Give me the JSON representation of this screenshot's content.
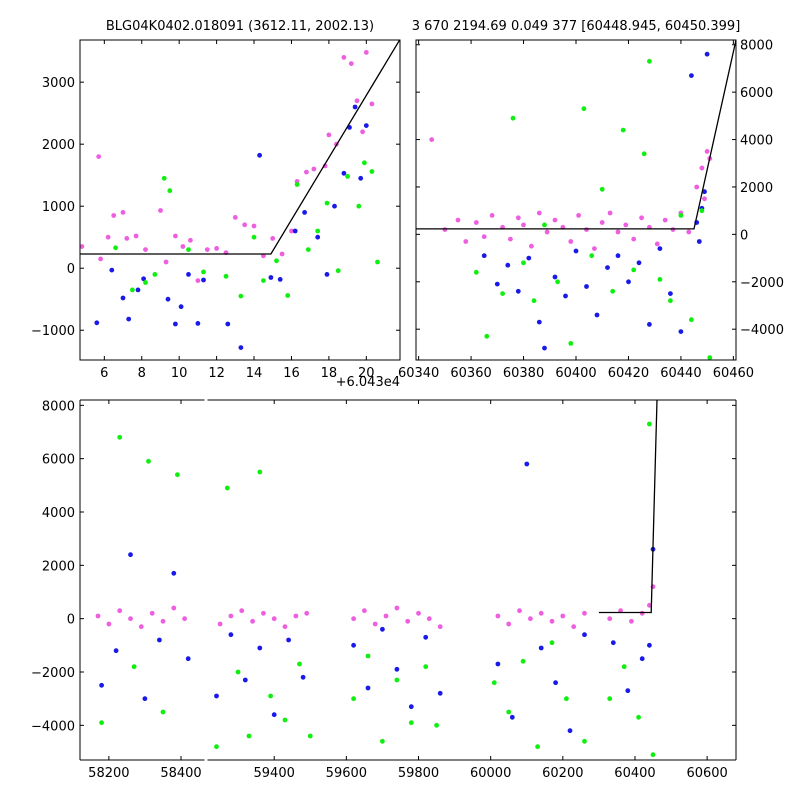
{
  "chart_data": [
    {
      "type": "scatter",
      "title": "BLG04K0402.018091 (3612.11, 2002.13)",
      "xlabel": "",
      "ylabel": "",
      "x_offset_label": "+6.043e4",
      "xlim": [
        4.7,
        21.8
      ],
      "ylim": [
        -1480,
        3680
      ],
      "xticks": [
        6,
        8,
        10,
        12,
        14,
        16,
        18,
        20
      ],
      "xtick_labels": [
        "6",
        "8",
        "10",
        "12",
        "14",
        "16",
        "18",
        "20"
      ],
      "yticks": [
        -1000,
        0,
        1000,
        2000,
        3000
      ],
      "ytick_labels": [
        "−1000",
        "0",
        "1000",
        "2000",
        "3000"
      ],
      "series": [
        {
          "color": "#ee5fe0",
          "x": [
            4.8,
            5.7,
            5.8,
            6.2,
            6.5,
            7.0,
            7.2,
            7.7,
            8.2,
            9.0,
            9.3,
            9.8,
            10.2,
            10.6,
            11.0,
            11.5,
            12.0,
            12.5,
            13.0,
            13.5,
            14.0,
            14.5,
            15.0,
            15.5,
            16.0,
            16.3,
            16.8,
            17.2,
            17.8,
            18.0,
            18.4,
            18.8,
            19.2,
            19.5,
            19.8,
            20.0,
            20.3
          ],
          "y": [
            350,
            1800,
            150,
            500,
            850,
            900,
            480,
            520,
            300,
            930,
            100,
            520,
            350,
            450,
            -200,
            300,
            320,
            250,
            820,
            700,
            680,
            200,
            480,
            230,
            600,
            1400,
            1550,
            1600,
            1650,
            2150,
            2000,
            3400,
            3300,
            2700,
            2200,
            3480,
            2650
          ]
        },
        {
          "color": "#1a1ae8",
          "x": [
            5.6,
            6.4,
            7.0,
            7.3,
            7.8,
            8.1,
            9.4,
            9.8,
            10.1,
            10.5,
            11.0,
            11.3,
            12.6,
            13.3,
            14.3,
            14.9,
            15.4,
            16.2,
            16.7,
            17.4,
            17.9,
            18.3,
            18.8,
            19.1,
            19.4,
            19.7,
            20.0
          ],
          "y": [
            -880,
            -30,
            -480,
            -820,
            -350,
            -170,
            -500,
            -900,
            -620,
            -100,
            -890,
            -190,
            -900,
            -1280,
            1820,
            -150,
            -180,
            600,
            900,
            500,
            -100,
            1000,
            1530,
            2270,
            2600,
            1450,
            2300
          ]
        },
        {
          "color": "#10f010",
          "x": [
            6.6,
            7.5,
            8.2,
            8.7,
            9.2,
            9.5,
            10.5,
            11.3,
            12.5,
            13.3,
            14.0,
            14.5,
            15.2,
            15.8,
            16.3,
            16.9,
            17.4,
            17.9,
            18.5,
            19.0,
            19.6,
            19.9,
            20.3,
            20.6
          ],
          "y": [
            330,
            -350,
            -230,
            -100,
            1450,
            1250,
            300,
            -60,
            -130,
            -450,
            500,
            -200,
            120,
            -440,
            1350,
            300,
            600,
            1050,
            -40,
            1480,
            1000,
            1700,
            1560,
            100
          ]
        }
      ],
      "model": {
        "color": "#000000",
        "x": [
          4.7,
          14.9,
          21.8
        ],
        "y": [
          230,
          230,
          3690
        ]
      }
    },
    {
      "type": "scatter",
      "title": "3 670 2194.69 0.049 377 [60448.945, 60450.399]",
      "xlabel": "",
      "ylabel": "",
      "xlim": [
        60339,
        60461
      ],
      "ylim": [
        -5300,
        8200
      ],
      "xticks": [
        60340,
        60360,
        60380,
        60400,
        60420,
        60440,
        60460
      ],
      "xtick_labels": [
        "60340",
        "60360",
        "60380",
        "60400",
        "60420",
        "60440",
        "60460"
      ],
      "yticks": [
        -4000,
        -2000,
        0,
        2000,
        4000,
        6000,
        8000
      ],
      "ytick_labels": [
        "−4000",
        "−2000",
        "0",
        "2000",
        "4000",
        "6000",
        "8000"
      ],
      "y_axis_side": "right",
      "series": [
        {
          "color": "#ee5fe0",
          "x": [
            60345,
            60350,
            60355,
            60358,
            60362,
            60365,
            60368,
            60372,
            60375,
            60378,
            60380,
            60383,
            60386,
            60389,
            60392,
            60395,
            60398,
            60401,
            60404,
            60407,
            60410,
            60413,
            60416,
            60419,
            60422,
            60425,
            60428,
            60431,
            60434,
            60437,
            60440,
            60443,
            60446,
            60448,
            60449,
            60450,
            60451
          ],
          "y": [
            4000,
            200,
            600,
            -300,
            500,
            -100,
            800,
            300,
            -200,
            700,
            400,
            -500,
            900,
            100,
            600,
            300,
            -300,
            800,
            200,
            -600,
            500,
            900,
            100,
            400,
            -200,
            700,
            300,
            -400,
            600,
            200,
            900,
            100,
            2000,
            2800,
            1500,
            3500,
            3200
          ]
        },
        {
          "color": "#1a1ae8",
          "x": [
            60365,
            60370,
            60374,
            60378,
            60382,
            60386,
            60388,
            60392,
            60396,
            60400,
            60404,
            60408,
            60412,
            60416,
            60420,
            60424,
            60428,
            60432,
            60436,
            60440,
            60444,
            60446,
            60447,
            60448,
            60449,
            60450
          ],
          "y": [
            -900,
            -2100,
            -1300,
            -2400,
            -1000,
            -3700,
            -4800,
            -1800,
            -2600,
            -700,
            -2200,
            -3400,
            -1400,
            -900,
            -2000,
            -1200,
            -3800,
            -600,
            -2500,
            -4100,
            6700,
            500,
            -300,
            1100,
            1800,
            7600
          ]
        },
        {
          "color": "#10f010",
          "x": [
            60362,
            60366,
            60372,
            60376,
            60380,
            60384,
            60388,
            60393,
            60398,
            60403,
            60406,
            60410,
            60414,
            60418,
            60422,
            60426,
            60428,
            60432,
            60436,
            60440,
            60444,
            60448,
            60451
          ],
          "y": [
            -1600,
            -4300,
            -2500,
            4900,
            -1200,
            -2800,
            400,
            -2000,
            -4600,
            5300,
            -900,
            1900,
            -2400,
            4400,
            -1500,
            3400,
            7300,
            -1900,
            -2800,
            800,
            -3600,
            1000,
            -5200
          ]
        }
      ],
      "model": {
        "color": "#000000",
        "x": [
          60339,
          60445,
          60461
        ],
        "y": [
          230,
          230,
          8200
        ]
      }
    },
    {
      "type": "scatter",
      "title": "",
      "xlabel": "",
      "ylabel": "",
      "xlim": [
        58120,
        60680
      ],
      "ylim": [
        -5300,
        8200
      ],
      "x_axis_break": [
        58465,
        59215
      ],
      "xticks": [
        58200,
        58400,
        59400,
        59600,
        59800,
        60000,
        60200,
        60400,
        60600
      ],
      "xtick_labels": [
        "58200",
        "58400",
        "59400",
        "59600",
        "59800",
        "60000",
        "60200",
        "60400",
        "60600"
      ],
      "yticks": [
        -4000,
        -2000,
        0,
        2000,
        4000,
        6000,
        8000
      ],
      "ytick_labels": [
        "−4000",
        "−2000",
        "0",
        "2000",
        "4000",
        "6000",
        "8000"
      ],
      "series": [
        {
          "color": "#ee5fe0",
          "x": [
            58170,
            58200,
            58230,
            58260,
            58290,
            58320,
            58350,
            58380,
            58410,
            59250,
            59280,
            59310,
            59340,
            59370,
            59400,
            59430,
            59460,
            59490,
            59620,
            59650,
            59680,
            59710,
            59740,
            59770,
            59800,
            59830,
            59860,
            60020,
            60050,
            60080,
            60110,
            60140,
            60170,
            60200,
            60230,
            60260,
            60330,
            60360,
            60390,
            60420,
            60440,
            60450
          ],
          "y": [
            100,
            -200,
            300,
            0,
            -300,
            200,
            -100,
            400,
            0,
            -200,
            100,
            300,
            -100,
            200,
            0,
            -300,
            100,
            200,
            0,
            300,
            -200,
            100,
            400,
            -100,
            200,
            0,
            -300,
            100,
            -200,
            300,
            0,
            200,
            -100,
            100,
            -300,
            200,
            0,
            300,
            -100,
            200,
            500,
            1200
          ]
        },
        {
          "color": "#1a1ae8",
          "x": [
            58180,
            58220,
            58260,
            58300,
            58340,
            58380,
            58420,
            59240,
            59280,
            59320,
            59360,
            59400,
            59440,
            59480,
            59620,
            59660,
            59700,
            59740,
            59780,
            59820,
            59860,
            60020,
            60060,
            60100,
            60140,
            60180,
            60220,
            60260,
            60340,
            60380,
            60420,
            60440,
            60450
          ],
          "y": [
            -2500,
            -1200,
            2400,
            -3000,
            -800,
            1700,
            -1500,
            -2900,
            -600,
            -2300,
            -1100,
            -3600,
            -800,
            -2200,
            -1000,
            -2600,
            -400,
            -1900,
            -3300,
            -700,
            -2800,
            -1700,
            -3700,
            5800,
            -1100,
            -2400,
            -4200,
            -600,
            -900,
            -2700,
            -1500,
            -1000,
            2600
          ]
        },
        {
          "color": "#10f010",
          "x": [
            58180,
            58230,
            58270,
            58310,
            58350,
            58390,
            59240,
            59270,
            59300,
            59330,
            59360,
            59390,
            59430,
            59470,
            59500,
            59620,
            59660,
            59700,
            59740,
            59780,
            59820,
            59850,
            60010,
            60050,
            60090,
            60130,
            60170,
            60210,
            60260,
            60330,
            60370,
            60410,
            60440,
            60450
          ],
          "y": [
            -3900,
            6800,
            -1800,
            5900,
            -3500,
            5400,
            -4800,
            4900,
            -2000,
            -4400,
            5500,
            -2900,
            -3800,
            -1700,
            -4400,
            -3000,
            -1400,
            -4600,
            -2300,
            -3900,
            -1800,
            -4000,
            -2400,
            -3500,
            -1600,
            -4800,
            -900,
            -3000,
            -4600,
            -3000,
            -1800,
            -3700,
            7300,
            -5100
          ]
        }
      ],
      "model": {
        "color": "#000000",
        "x": [
          60300,
          60445,
          60461
        ],
        "y": [
          230,
          230,
          8200
        ]
      }
    }
  ]
}
